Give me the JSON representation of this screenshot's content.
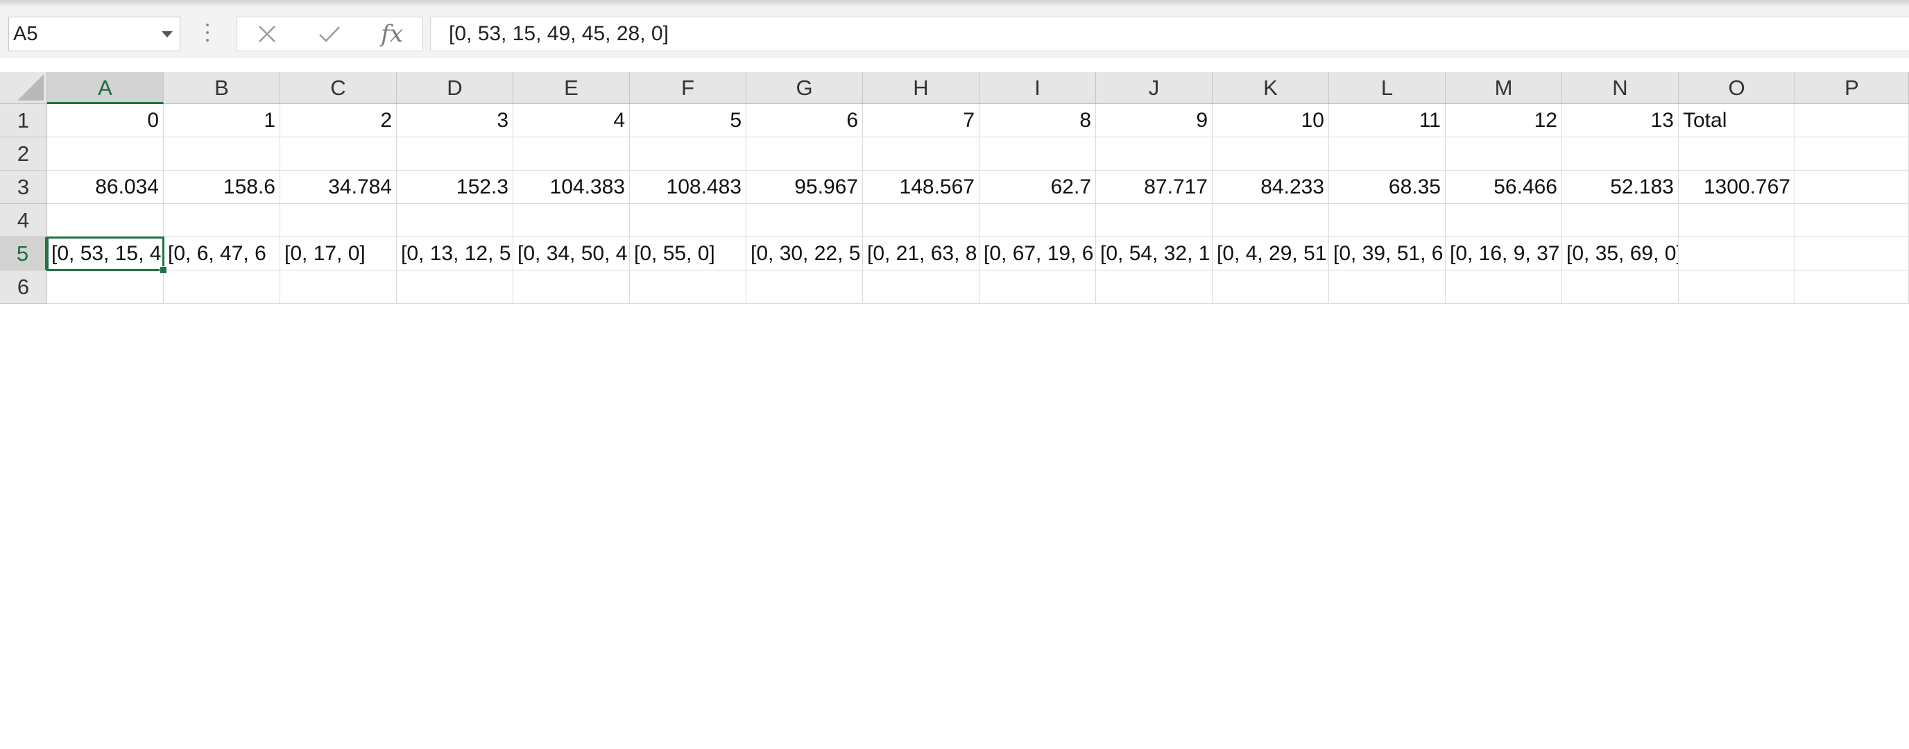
{
  "name_box": {
    "value": "A5"
  },
  "formula_bar": {
    "cancel_icon": "close-icon",
    "enter_icon": "checkmark-icon",
    "fx_label": "fx",
    "content": "[0, 53, 15, 49, 45, 28, 0]"
  },
  "sheet": {
    "active_cell": "A5",
    "columns": [
      "A",
      "B",
      "C",
      "D",
      "E",
      "F",
      "G",
      "H",
      "I",
      "J",
      "K",
      "L",
      "M",
      "N",
      "O",
      "P"
    ],
    "rows": [
      "1",
      "2",
      "3",
      "4",
      "5",
      "6"
    ],
    "row1": [
      "0",
      "1",
      "2",
      "3",
      "4",
      "5",
      "6",
      "7",
      "8",
      "9",
      "10",
      "11",
      "12",
      "13",
      "Total"
    ],
    "row3": [
      "86.034",
      "158.6",
      "34.784",
      "152.3",
      "104.383",
      "108.483",
      "95.967",
      "148.567",
      "62.7",
      "87.717",
      "84.233",
      "68.35",
      "56.466",
      "52.183",
      "1300.767"
    ],
    "row5": [
      "[0, 53, 15, 49, 45, 28, 0]",
      "[0, 6, 47, 6",
      "[0, 17, 0]",
      "[0, 13, 12, 5",
      "[0, 34, 50, 4",
      "[0, 55, 0]",
      "[0, 30, 22, 5",
      "[0, 21, 63, 8",
      "[0, 67, 19, 6",
      "[0, 54, 32, 1",
      "[0, 4, 29, 51",
      "[0, 39, 51, 6",
      "[0, 16, 9, 37",
      "[0, 35, 69, 0]"
    ]
  },
  "colors": {
    "accent": "#217346",
    "header_bg": "#e6e6e6",
    "gridline": "#dadada"
  }
}
